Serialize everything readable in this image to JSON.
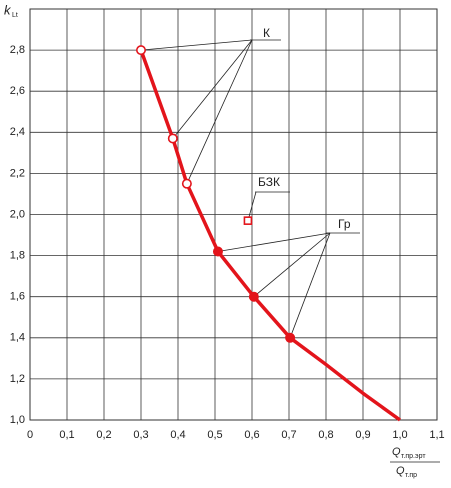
{
  "chart_data": {
    "type": "line",
    "y_label": "k",
    "y_label_sub": "Lt",
    "x_label_num": "Q",
    "x_label_num_sub": "т.пр.эрт",
    "x_label_den": "Q",
    "x_label_den_sub": "т.пр",
    "xlim": [
      0,
      1.1
    ],
    "ylim": [
      1.0,
      3.0
    ],
    "xticks": [
      {
        "value": 0,
        "label": "0"
      },
      {
        "value": 0.1,
        "label": "0,1"
      },
      {
        "value": 0.2,
        "label": "0,2"
      },
      {
        "value": 0.3,
        "label": "0,3"
      },
      {
        "value": 0.4,
        "label": "0,4"
      },
      {
        "value": 0.5,
        "label": "0,5"
      },
      {
        "value": 0.6,
        "label": "0,6"
      },
      {
        "value": 0.7,
        "label": "0,7"
      },
      {
        "value": 0.8,
        "label": "0,8"
      },
      {
        "value": 0.9,
        "label": "0,9"
      },
      {
        "value": 1.0,
        "label": "1,0"
      },
      {
        "value": 1.1,
        "label": "1,1"
      }
    ],
    "yticks": [
      {
        "value": 1.0,
        "label": "1,0"
      },
      {
        "value": 1.2,
        "label": "1,2"
      },
      {
        "value": 1.4,
        "label": "1,4"
      },
      {
        "value": 1.6,
        "label": "1,6"
      },
      {
        "value": 1.8,
        "label": "1,8"
      },
      {
        "value": 2.0,
        "label": "2,0"
      },
      {
        "value": 2.2,
        "label": "2,2"
      },
      {
        "value": 2.4,
        "label": "2,4"
      },
      {
        "value": 2.6,
        "label": "2,6"
      },
      {
        "value": 2.8,
        "label": "2,8"
      }
    ],
    "grid": true,
    "curve": {
      "color": "#e3141b",
      "x": [
        0.3,
        0.386,
        0.424,
        0.508,
        0.605,
        0.703,
        0.8,
        0.9,
        1.0
      ],
      "values": [
        2.8,
        2.37,
        2.15,
        1.82,
        1.6,
        1.4,
        1.27,
        1.13,
        1.0
      ]
    },
    "annotations": [
      {
        "label": "К",
        "marker": "open-circle",
        "x": [
          0.3,
          0.386,
          0.424
        ],
        "values": [
          2.8,
          2.37,
          2.15
        ]
      },
      {
        "label": "БЗК",
        "marker": "open-square",
        "x": [
          0.589
        ],
        "values": [
          1.97
        ]
      },
      {
        "label": "Гр",
        "marker": "filled-circle",
        "x": [
          0.508,
          0.605,
          0.703
        ],
        "values": [
          1.82,
          1.6,
          1.4
        ]
      }
    ]
  }
}
